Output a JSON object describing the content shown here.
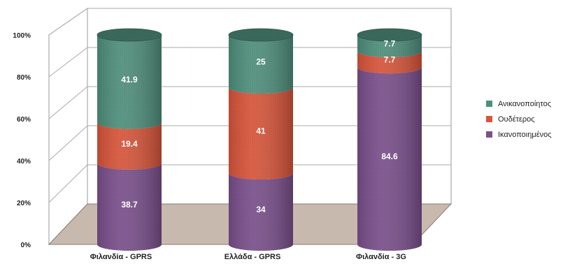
{
  "chart_data": {
    "type": "bar",
    "stacked": true,
    "style": "3d-cylinder",
    "categories": [
      "Φιλανδία - GPRS",
      "Ελλάδα - GPRS",
      "Φιλανδία - 3G"
    ],
    "series": [
      {
        "name": "Ικανοποιημένος",
        "color": "#7a4f8c",
        "values": [
          38.7,
          34,
          84.6
        ]
      },
      {
        "name": "Ουδέτερος",
        "color": "#d9553a",
        "values": [
          19.4,
          41,
          7.7
        ]
      },
      {
        "name": "Ανικανοποίητος",
        "color": "#4f8f7c",
        "values": [
          41.9,
          25,
          7.7
        ]
      }
    ],
    "value_labels": [
      [
        "38.7",
        "34",
        "84.6"
      ],
      [
        "19.4",
        "41",
        "7.7"
      ],
      [
        "41.9",
        "25",
        "7.7"
      ]
    ],
    "ylim": [
      0,
      100
    ],
    "yticks": [
      "0%",
      "20%",
      "40%",
      "60%",
      "80%",
      "100%"
    ],
    "legend_position": "right",
    "grid": true
  }
}
